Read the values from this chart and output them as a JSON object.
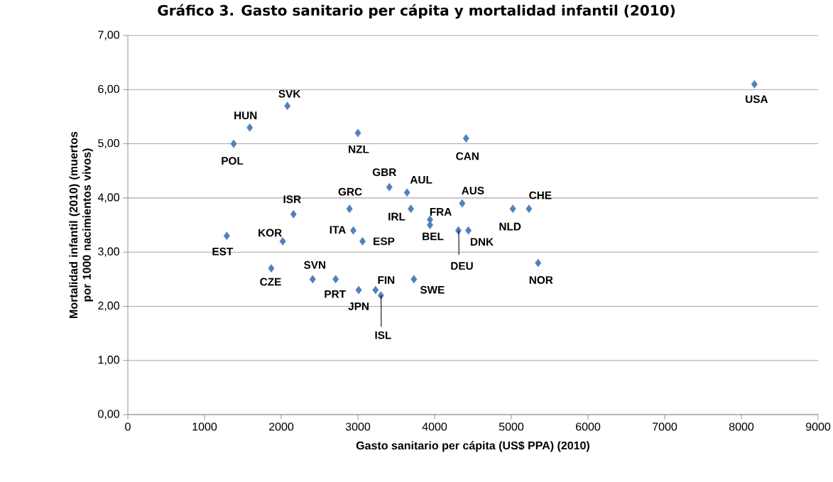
{
  "chart_data": {
    "type": "scatter",
    "title": "Gráfico 3. Gasto sanitario per cápita y mortalidad infantil (2010)",
    "xlabel": "Gasto sanitario per cápita (US$ PPA) (2010)",
    "ylabel": "Mortalidad infantil (2010) (muertos por 1000 nacimientos vivos)",
    "x": [
      1290,
      1380,
      1590,
      2080,
      2020,
      2160,
      1870,
      2410,
      2710,
      2890,
      2940,
      3060,
      3010,
      3230,
      3300,
      3000,
      3410,
      3640,
      3690,
      3730,
      3940,
      3940,
      4360,
      4310,
      4440,
      4410,
      5020,
      5230,
      5350,
      8170
    ],
    "values": [
      3.3,
      5.0,
      5.3,
      5.7,
      3.2,
      3.7,
      2.7,
      2.5,
      2.5,
      3.8,
      3.4,
      3.2,
      2.3,
      2.3,
      2.2,
      5.2,
      4.2,
      4.1,
      3.8,
      2.5,
      3.6,
      3.5,
      3.9,
      3.4,
      3.4,
      5.1,
      3.8,
      3.8,
      2.8,
      6.1
    ],
    "color": "#4f81bd",
    "marker": "diamond",
    "grid": "y",
    "xlim": [
      0,
      9000
    ],
    "xticks": [
      0,
      1000,
      2000,
      3000,
      4000,
      5000,
      6000,
      7000,
      8000,
      9000
    ],
    "ylim": [
      0,
      7
    ],
    "yticks": [
      {
        "value": 0,
        "label": "0,00"
      },
      {
        "value": 1,
        "label": "1,00"
      },
      {
        "value": 2,
        "label": "2,00"
      },
      {
        "value": 3,
        "label": "3,00"
      },
      {
        "value": 4,
        "label": "4,00"
      },
      {
        "value": 5,
        "label": "5,00"
      },
      {
        "value": 6,
        "label": "6,00"
      },
      {
        "value": 7,
        "label": "7,00"
      }
    ],
    "annotations": [
      {
        "text": "EST",
        "x": 1290,
        "y": 3.3
      },
      {
        "text": "POL",
        "x": 1380,
        "y": 5.0
      },
      {
        "text": "HUN",
        "x": 1590,
        "y": 5.3
      },
      {
        "text": "SVK",
        "x": 2080,
        "y": 5.7
      },
      {
        "text": "KOR",
        "x": 2020,
        "y": 3.2
      },
      {
        "text": "ISR",
        "x": 2160,
        "y": 3.7
      },
      {
        "text": "CZE",
        "x": 1870,
        "y": 2.7
      },
      {
        "text": "SVN",
        "x": 2410,
        "y": 2.5
      },
      {
        "text": "PRT",
        "x": 2710,
        "y": 2.5
      },
      {
        "text": "GRC",
        "x": 2890,
        "y": 3.8
      },
      {
        "text": "ITA",
        "x": 2940,
        "y": 3.4
      },
      {
        "text": "ESP",
        "x": 3060,
        "y": 3.2
      },
      {
        "text": "JPN",
        "x": 3010,
        "y": 2.3
      },
      {
        "text": "FIN",
        "x": 3230,
        "y": 2.3
      },
      {
        "text": "ISL",
        "x": 3300,
        "y": 2.2
      },
      {
        "text": "NZL",
        "x": 3000,
        "y": 5.2
      },
      {
        "text": "GBR",
        "x": 3410,
        "y": 4.2
      },
      {
        "text": "AUL",
        "x": 3640,
        "y": 4.1
      },
      {
        "text": "IRL",
        "x": 3690,
        "y": 3.8
      },
      {
        "text": "SWE",
        "x": 3730,
        "y": 2.5
      },
      {
        "text": "FRA",
        "x": 3940,
        "y": 3.6
      },
      {
        "text": "BEL",
        "x": 3940,
        "y": 3.5
      },
      {
        "text": "AUS",
        "x": 4360,
        "y": 3.9
      },
      {
        "text": "DEU",
        "x": 4310,
        "y": 3.4
      },
      {
        "text": "DNK",
        "x": 4440,
        "y": 3.4
      },
      {
        "text": "CAN",
        "x": 4410,
        "y": 5.1
      },
      {
        "text": "NLD",
        "x": 5020,
        "y": 3.8
      },
      {
        "text": "CHE",
        "x": 5230,
        "y": 3.8
      },
      {
        "text": "NOR",
        "x": 5350,
        "y": 2.8
      },
      {
        "text": "USA",
        "x": 8170,
        "y": 6.1
      }
    ]
  }
}
